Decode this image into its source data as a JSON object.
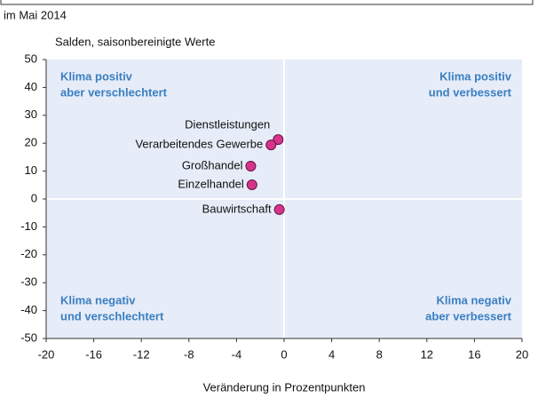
{
  "chart_data": {
    "type": "scatter",
    "title": "im Mai 2014",
    "subtitle": "Salden, saisonbereinigte Werte",
    "x_label": "Veränderung in Prozentpunkten",
    "labels": [
      "Dienstleistungen",
      "Verarbeitendes Gewerbe",
      "Großhandel",
      "Einzelhandel",
      "Bauwirtschaft"
    ],
    "x": [
      -0.5,
      -1.1,
      -2.8,
      -2.7,
      -0.4
    ],
    "y": [
      21.3,
      19.4,
      11.8,
      5.1,
      -3.8
    ],
    "color": "#d6348c",
    "xlim": [
      -20,
      20
    ],
    "xticks": [
      -20,
      -16,
      -12,
      -8,
      -4,
      0,
      4,
      8,
      12,
      16,
      20
    ],
    "ylim": [
      -50,
      50
    ],
    "yticks": [
      -50,
      -40,
      -30,
      -20,
      -10,
      0,
      10,
      20,
      30,
      40,
      50
    ],
    "annotations": [
      {
        "lines": [
          "Klima positiv",
          "aber verschlechtert"
        ],
        "corner": "top-left"
      },
      {
        "lines": [
          "Klima positiv",
          "und verbessert"
        ],
        "corner": "top-right"
      },
      {
        "lines": [
          "Klima negativ",
          "und verschlechtert"
        ],
        "corner": "bottom-left"
      },
      {
        "lines": [
          "Klima negativ",
          "aber verbessert"
        ],
        "corner": "bottom-right"
      }
    ]
  }
}
